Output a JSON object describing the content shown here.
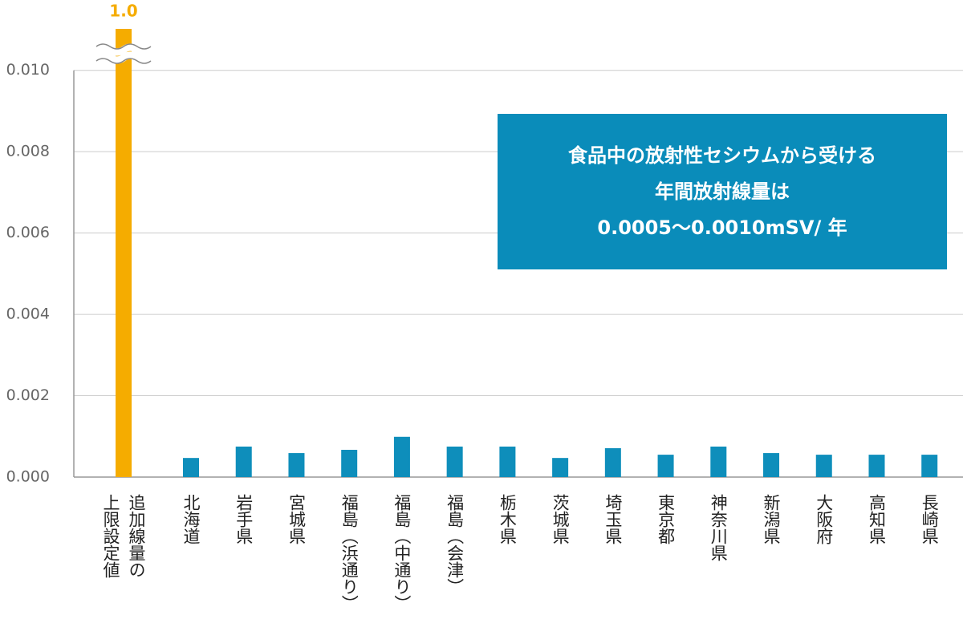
{
  "chart_data": {
    "type": "bar",
    "annotation": "食品中の放射性セシウムから受ける\n年間放射線量は\n0.0005〜0.0010mSV/ 年",
    "annotation_color": "#0a8cba",
    "categories": [
      "追加線量の\n上限設定値",
      "北海道",
      "岩手県",
      "宮城県",
      "福島（浜通り）",
      "福島（中通り）",
      "福島（会津）",
      "栃木県",
      "茨城県",
      "埼玉県",
      "東京都",
      "神奈川県",
      "新潟県",
      "大阪府",
      "高知県",
      "長崎県"
    ],
    "values": [
      1.0,
      0.00047,
      0.00075,
      0.00059,
      0.00067,
      0.00099,
      0.00075,
      0.00075,
      0.00047,
      0.00071,
      0.00055,
      0.00075,
      0.00059,
      0.00055,
      0.00055,
      0.00055
    ],
    "value_labels": [
      "1.0",
      null,
      null,
      null,
      null,
      null,
      null,
      null,
      null,
      null,
      null,
      null,
      null,
      null,
      null,
      null
    ],
    "colors": [
      "#f5ac00",
      "#0e8ebb",
      "#0e8ebb",
      "#0e8ebb",
      "#0e8ebb",
      "#0e8ebb",
      "#0e8ebb",
      "#0e8ebb",
      "#0e8ebb",
      "#0e8ebb",
      "#0e8ebb",
      "#0e8ebb",
      "#0e8ebb",
      "#0e8ebb",
      "#0e8ebb",
      "#0e8ebb"
    ],
    "ylim": [
      0,
      0.011
    ],
    "yticks": [
      {
        "value": 0,
        "label": "0.000"
      },
      {
        "value": 0.002,
        "label": "0.002"
      },
      {
        "value": 0.004,
        "label": "0.004"
      },
      {
        "value": 0.006,
        "label": "0.006"
      },
      {
        "value": 0.008,
        "label": "0.008"
      },
      {
        "value": 0.01,
        "label": "0.010"
      }
    ],
    "grid": true
  }
}
